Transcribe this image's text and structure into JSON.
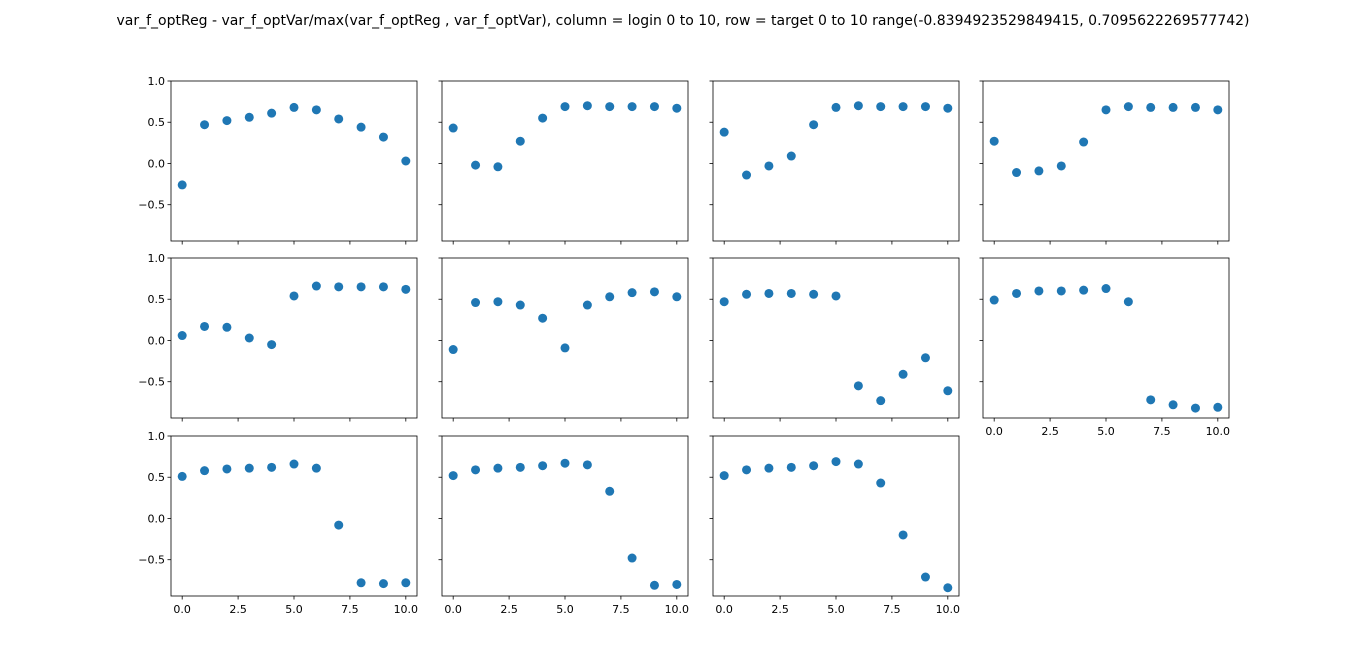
{
  "title": "var_f_optReg - var_f_optVar/max(var_f_optReg , var_f_optVar), column = login 0 to 10, row = target 0 to 10 range(-0.8394923529849415, 0.7095622269577742)",
  "colors": {
    "marker": "#1f77b4",
    "axes": "#000000",
    "background": "#ffffff"
  },
  "chart_data": [
    {
      "type": "scatter",
      "x": [
        0,
        1,
        2,
        3,
        4,
        5,
        6,
        7,
        8,
        9,
        10
      ],
      "y": [
        -0.26,
        0.47,
        0.52,
        0.56,
        0.61,
        0.68,
        0.65,
        0.54,
        0.44,
        0.32,
        0.03
      ],
      "xlim": [
        -0.5,
        10.5
      ],
      "ylim": [
        -0.94,
        1.0
      ]
    },
    {
      "type": "scatter",
      "x": [
        0,
        1,
        2,
        3,
        4,
        5,
        6,
        7,
        8,
        9,
        10
      ],
      "y": [
        0.43,
        -0.02,
        -0.04,
        0.27,
        0.55,
        0.69,
        0.7,
        0.69,
        0.69,
        0.69,
        0.67
      ],
      "xlim": [
        -0.5,
        10.5
      ],
      "ylim": [
        -0.94,
        1.0
      ]
    },
    {
      "type": "scatter",
      "x": [
        0,
        1,
        2,
        3,
        4,
        5,
        6,
        7,
        8,
        9,
        10
      ],
      "y": [
        0.38,
        -0.14,
        -0.03,
        0.09,
        0.47,
        0.68,
        0.7,
        0.69,
        0.69,
        0.69,
        0.67
      ],
      "xlim": [
        -0.5,
        10.5
      ],
      "ylim": [
        -0.94,
        1.0
      ]
    },
    {
      "type": "scatter",
      "x": [
        0,
        1,
        2,
        3,
        4,
        5,
        6,
        7,
        8,
        9,
        10
      ],
      "y": [
        0.27,
        -0.11,
        -0.09,
        -0.03,
        0.26,
        0.65,
        0.69,
        0.68,
        0.68,
        0.68,
        0.65
      ],
      "xlim": [
        -0.5,
        10.5
      ],
      "ylim": [
        -0.94,
        1.0
      ]
    },
    {
      "type": "scatter",
      "x": [
        0,
        1,
        2,
        3,
        4,
        5,
        6,
        7,
        8,
        9,
        10
      ],
      "y": [
        0.06,
        0.17,
        0.16,
        0.03,
        -0.05,
        0.54,
        0.66,
        0.65,
        0.65,
        0.65,
        0.62
      ],
      "xlim": [
        -0.5,
        10.5
      ],
      "ylim": [
        -0.94,
        1.0
      ]
    },
    {
      "type": "scatter",
      "x": [
        0,
        1,
        2,
        3,
        4,
        5,
        6,
        7,
        8,
        9,
        10
      ],
      "y": [
        -0.11,
        0.46,
        0.47,
        0.43,
        0.27,
        -0.09,
        0.43,
        0.53,
        0.58,
        0.59,
        0.53
      ],
      "xlim": [
        -0.5,
        10.5
      ],
      "ylim": [
        -0.94,
        1.0
      ]
    },
    {
      "type": "scatter",
      "x": [
        0,
        1,
        2,
        3,
        4,
        5,
        6,
        7,
        8,
        9,
        10
      ],
      "y": [
        0.47,
        0.56,
        0.57,
        0.57,
        0.56,
        0.54,
        -0.55,
        -0.73,
        -0.41,
        -0.21,
        -0.61
      ],
      "xlim": [
        -0.5,
        10.5
      ],
      "ylim": [
        -0.94,
        1.0
      ]
    },
    {
      "type": "scatter",
      "x": [
        0,
        1,
        2,
        3,
        4,
        5,
        6,
        7,
        8,
        9,
        10
      ],
      "y": [
        0.49,
        0.57,
        0.6,
        0.6,
        0.61,
        0.63,
        0.47,
        -0.72,
        -0.78,
        -0.82,
        -0.81
      ],
      "xlim": [
        -0.5,
        10.5
      ],
      "ylim": [
        -0.94,
        1.0
      ]
    },
    {
      "type": "scatter",
      "x": [
        0,
        1,
        2,
        3,
        4,
        5,
        6,
        7,
        8,
        9,
        10
      ],
      "y": [
        0.51,
        0.58,
        0.6,
        0.61,
        0.62,
        0.66,
        0.61,
        -0.08,
        -0.78,
        -0.79,
        -0.78
      ],
      "xlim": [
        -0.5,
        10.5
      ],
      "ylim": [
        -0.94,
        1.0
      ]
    },
    {
      "type": "scatter",
      "x": [
        0,
        1,
        2,
        3,
        4,
        5,
        6,
        7,
        8,
        9,
        10
      ],
      "y": [
        0.52,
        0.59,
        0.61,
        0.62,
        0.64,
        0.67,
        0.65,
        0.33,
        -0.48,
        -0.81,
        -0.8
      ],
      "xlim": [
        -0.5,
        10.5
      ],
      "ylim": [
        -0.94,
        1.0
      ]
    },
    {
      "type": "scatter",
      "x": [
        0,
        1,
        2,
        3,
        4,
        5,
        6,
        7,
        8,
        9,
        10
      ],
      "y": [
        0.52,
        0.59,
        0.61,
        0.62,
        0.64,
        0.69,
        0.66,
        0.43,
        -0.2,
        -0.71,
        -0.84
      ],
      "xlim": [
        -0.5,
        10.5
      ],
      "ylim": [
        -0.94,
        1.0
      ]
    }
  ],
  "y_tick_labels": [
    "1.0",
    "0.5",
    "0.0",
    "−0.5"
  ],
  "y_tick_values": [
    1.0,
    0.5,
    0.0,
    -0.5
  ],
  "x_tick_labels": [
    "0.0",
    "2.5",
    "5.0",
    "7.5",
    "10.0"
  ],
  "x_tick_values": [
    0.0,
    2.5,
    5.0,
    7.5,
    10.0
  ]
}
